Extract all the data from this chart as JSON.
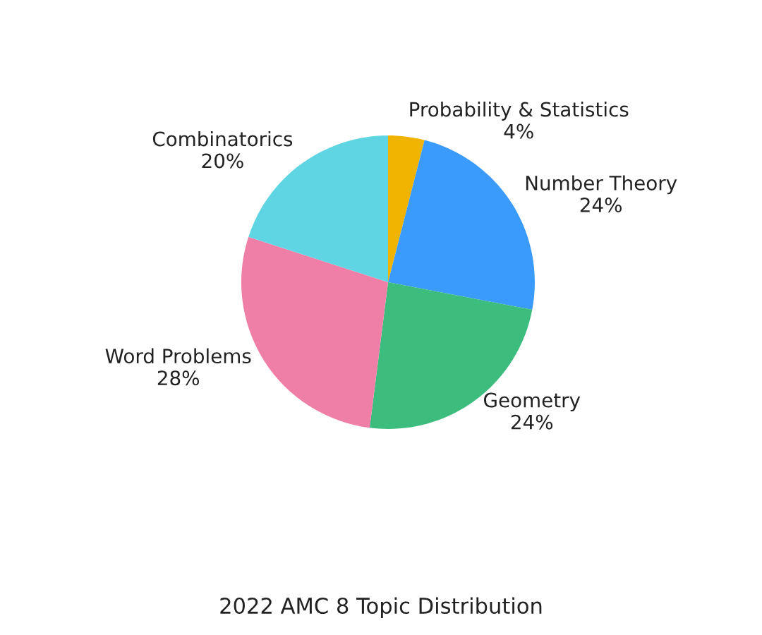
{
  "chart_data": {
    "type": "pie",
    "title": "2022 AMC 8 Topic Distribution",
    "categories": [
      "Probability & Statistics",
      "Number Theory",
      "Geometry",
      "Word Problems",
      "Combinatorics"
    ],
    "values": [
      4,
      24,
      24,
      28,
      20
    ],
    "value_labels": [
      "4%",
      "24%",
      "24%",
      "28%",
      "20%"
    ],
    "colors": [
      "#f0b400",
      "#3a9bfc",
      "#3dbd7d",
      "#f07fa8",
      "#5fd4e3"
    ],
    "legend": false
  }
}
